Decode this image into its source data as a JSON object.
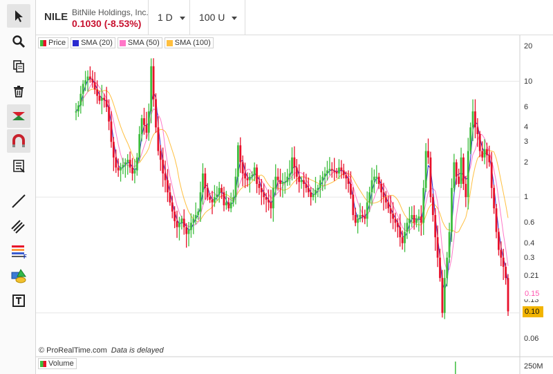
{
  "header": {
    "symbol": "NILE",
    "company": "BitNile Holdings, Inc.",
    "price_change": "0.1030 (-8.53%)",
    "interval": "1 D",
    "range": "100 U"
  },
  "toolbar": {
    "tools": [
      "cursor-icon",
      "zoom-icon",
      "copy-icon",
      "trash-icon",
      "hide-icon",
      "magnet-icon",
      "list-icon",
      "line-icon",
      "parallel-lines-icon",
      "fibonacci-icon",
      "shapes-icon",
      "text-icon"
    ]
  },
  "legend": {
    "price": "Price",
    "sma20": "SMA (20)",
    "sma50": "SMA (50)",
    "sma100": "SMA (100)"
  },
  "colors": {
    "up": "#3dbd3d",
    "down": "#e8102a",
    "sma20": "#2b2bcf",
    "sma50": "#ff77c8",
    "sma100": "#ffbf3f",
    "last_price_badge": "#f2b400"
  },
  "credit": {
    "source": "© ProRealTime.com",
    "note": "Data is delayed"
  },
  "volume": {
    "label": "Volume",
    "axis_label": "250M"
  },
  "axis": {
    "y_ticks": [
      "20",
      "10",
      "6",
      "4",
      "3",
      "2",
      "1",
      "0.6",
      "0.4",
      "0.3",
      "0.21",
      "0.13",
      "0.06"
    ],
    "sma50_value": "0.15",
    "last_price": "0.10"
  },
  "chart_data": {
    "type": "line",
    "y_scale": "log",
    "ylim": [
      0.05,
      25
    ],
    "grid": true,
    "legend_position": "top-left",
    "price_close": [
      5.5,
      6.2,
      7.8,
      9.5,
      10.2,
      11.0,
      10.5,
      9.8,
      8.5,
      7.5,
      6.8,
      7.2,
      6.9,
      6.0,
      4.5,
      3.0,
      2.2,
      1.8,
      1.7,
      1.8,
      1.9,
      2.0,
      2.1,
      1.8,
      1.6,
      1.7,
      2.2,
      3.5,
      4.8,
      4.2,
      3.6,
      5.5,
      13.5,
      7.0,
      4.0,
      2.5,
      2.1,
      1.6,
      1.4,
      1.1,
      0.9,
      0.75,
      0.62,
      0.55,
      0.6,
      0.65,
      0.55,
      0.48,
      0.52,
      0.6,
      0.65,
      0.7,
      0.75,
      1.1,
      1.6,
      1.2,
      1.0,
      0.95,
      0.9,
      1.0,
      1.05,
      1.2,
      1.1,
      0.85,
      0.9,
      0.8,
      0.9,
      1.0,
      1.5,
      2.8,
      2.0,
      1.6,
      1.45,
      1.4,
      1.5,
      1.55,
      1.8,
      1.3,
      1.2,
      1.1,
      1.0,
      0.95,
      0.9,
      0.8,
      1.2,
      1.5,
      1.4,
      1.3,
      1.35,
      1.35,
      1.5,
      1.6,
      2.2,
      1.8,
      1.5,
      1.35,
      1.4,
      1.3,
      1.2,
      1.1,
      1.0,
      1.05,
      1.15,
      1.2,
      1.4,
      1.5,
      1.6,
      1.7,
      1.75,
      1.7,
      1.65,
      1.6,
      1.8,
      1.7,
      1.55,
      1.45,
      1.3,
      1.05,
      0.7,
      0.6,
      0.65,
      0.7,
      0.68,
      0.65,
      0.9,
      1.1,
      1.4,
      1.5,
      1.5,
      1.3,
      1.1,
      1.0,
      0.9,
      0.8,
      0.72,
      0.65,
      0.6,
      0.55,
      0.45,
      0.4,
      0.5,
      0.6,
      0.65,
      0.7,
      0.6,
      0.65,
      0.68,
      0.6,
      1.2,
      2.5,
      2.2,
      1.0,
      0.7,
      0.45,
      0.3,
      0.2,
      0.1,
      0.2,
      0.3,
      0.5,
      1.2,
      2.0,
      1.5,
      1.3,
      2.2,
      1.3,
      1.0,
      2.5,
      4.0,
      5.5,
      4.0,
      3.5,
      2.5,
      2.2,
      2.6,
      2.3,
      2.0,
      1.2,
      0.8,
      0.5,
      0.35,
      0.3,
      0.25,
      0.2,
      0.103
    ],
    "volume_spike_index": 161
  }
}
